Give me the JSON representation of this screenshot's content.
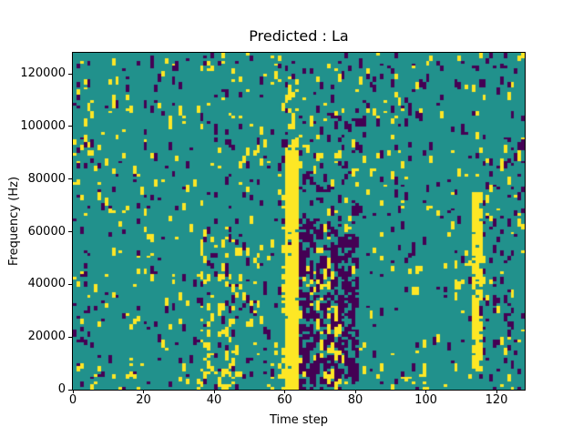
{
  "figure": {
    "background_color": "#ffffff",
    "spine_color": "#000000",
    "text_color": "#000000"
  },
  "chart_data": {
    "type": "heatmap",
    "title": "Predicted : La",
    "xlabel": "Time step",
    "ylabel": "Frequency (Hz)",
    "xticks": [
      0,
      20,
      40,
      60,
      80,
      100,
      120
    ],
    "yticks": [
      0,
      20000,
      40000,
      60000,
      80000,
      100000,
      120000
    ],
    "xlim": [
      0,
      128
    ],
    "ylim_hz": [
      0,
      128000
    ],
    "grid": {
      "cols": 128,
      "rows": 128,
      "hz_per_row": 1000
    },
    "legend": "none",
    "colormap": {
      "name": "viridis-3-level",
      "levels": {
        "mid_background": "#21918c",
        "high_yellow": "#fde725",
        "low_purple": "#440154"
      }
    },
    "value_semantics": "ternary mask: background=mid, active=high(yellow), inactive=low(purple); cells occur in short vertical runs",
    "noise": {
      "seed": 1337,
      "base": {
        "name": "base-scatter",
        "pY": 0.022,
        "pP": 0.025,
        "run": 3
      }
    },
    "features": [
      {
        "name": "yellow-main-band",
        "t": [
          60,
          63
        ],
        "f": [
          0,
          92
        ],
        "pY": 0.88,
        "pP": 0.02,
        "run": 4
      },
      {
        "name": "yellow-band-left-edge",
        "t": [
          59,
          59
        ],
        "f": [
          0,
          75
        ],
        "pY": 0.28,
        "pP": 0.03,
        "run": 3
      },
      {
        "name": "yellow-band-top-streaks",
        "t": [
          59,
          63
        ],
        "f": [
          93,
          118
        ],
        "pY": 0.16,
        "pP": 0.05,
        "run": 3
      },
      {
        "name": "purple-cluster-1",
        "t": [
          64,
          68
        ],
        "f": [
          0,
          64
        ],
        "pY": 0.06,
        "pP": 0.4,
        "run": 4
      },
      {
        "name": "purple-cluster-2-mixed",
        "t": [
          69,
          75
        ],
        "f": [
          0,
          60
        ],
        "pY": 0.15,
        "pP": 0.28,
        "run": 4
      },
      {
        "name": "purple-cluster-3",
        "t": [
          76,
          80
        ],
        "f": [
          4,
          58
        ],
        "pY": 0.05,
        "pP": 0.45,
        "run": 4
      },
      {
        "name": "upper-mid-purple-streaks",
        "t": [
          60,
          82
        ],
        "f": [
          61,
          102
        ],
        "pY": 0.05,
        "pP": 0.1,
        "run": 3
      },
      {
        "name": "yellow-band-2",
        "t": [
          113,
          115
        ],
        "f": [
          8,
          75
        ],
        "pY": 0.65,
        "pP": 0.03,
        "run": 4
      },
      {
        "name": "right-purple-region",
        "t": [
          116,
          127
        ],
        "f": [
          0,
          96
        ],
        "pY": 0.035,
        "pP": 0.07,
        "run": 3
      },
      {
        "name": "left-low-yellow-cluster",
        "t": [
          36,
          45
        ],
        "f": [
          0,
          22
        ],
        "pY": 0.22,
        "pP": 0.04,
        "run": 2
      },
      {
        "name": "mid-left-yellow-scatter",
        "t": [
          36,
          52
        ],
        "f": [
          23,
          64
        ],
        "pY": 0.08,
        "pP": 0.05,
        "run": 3
      },
      {
        "name": "left-edge-scatter",
        "t": [
          0,
          3
        ],
        "f": [
          0,
          127
        ],
        "pY": 0.05,
        "pP": 0.06,
        "run": 2
      },
      {
        "name": "bottom-rows-scatter",
        "t": [
          0,
          127
        ],
        "f": [
          0,
          6
        ],
        "pY": 0.06,
        "pP": 0.03,
        "run": 2
      },
      {
        "name": "top-rows-scatter",
        "t": [
          0,
          127
        ],
        "f": [
          121,
          127
        ],
        "pY": 0.035,
        "pP": 0.045,
        "run": 2
      }
    ]
  }
}
